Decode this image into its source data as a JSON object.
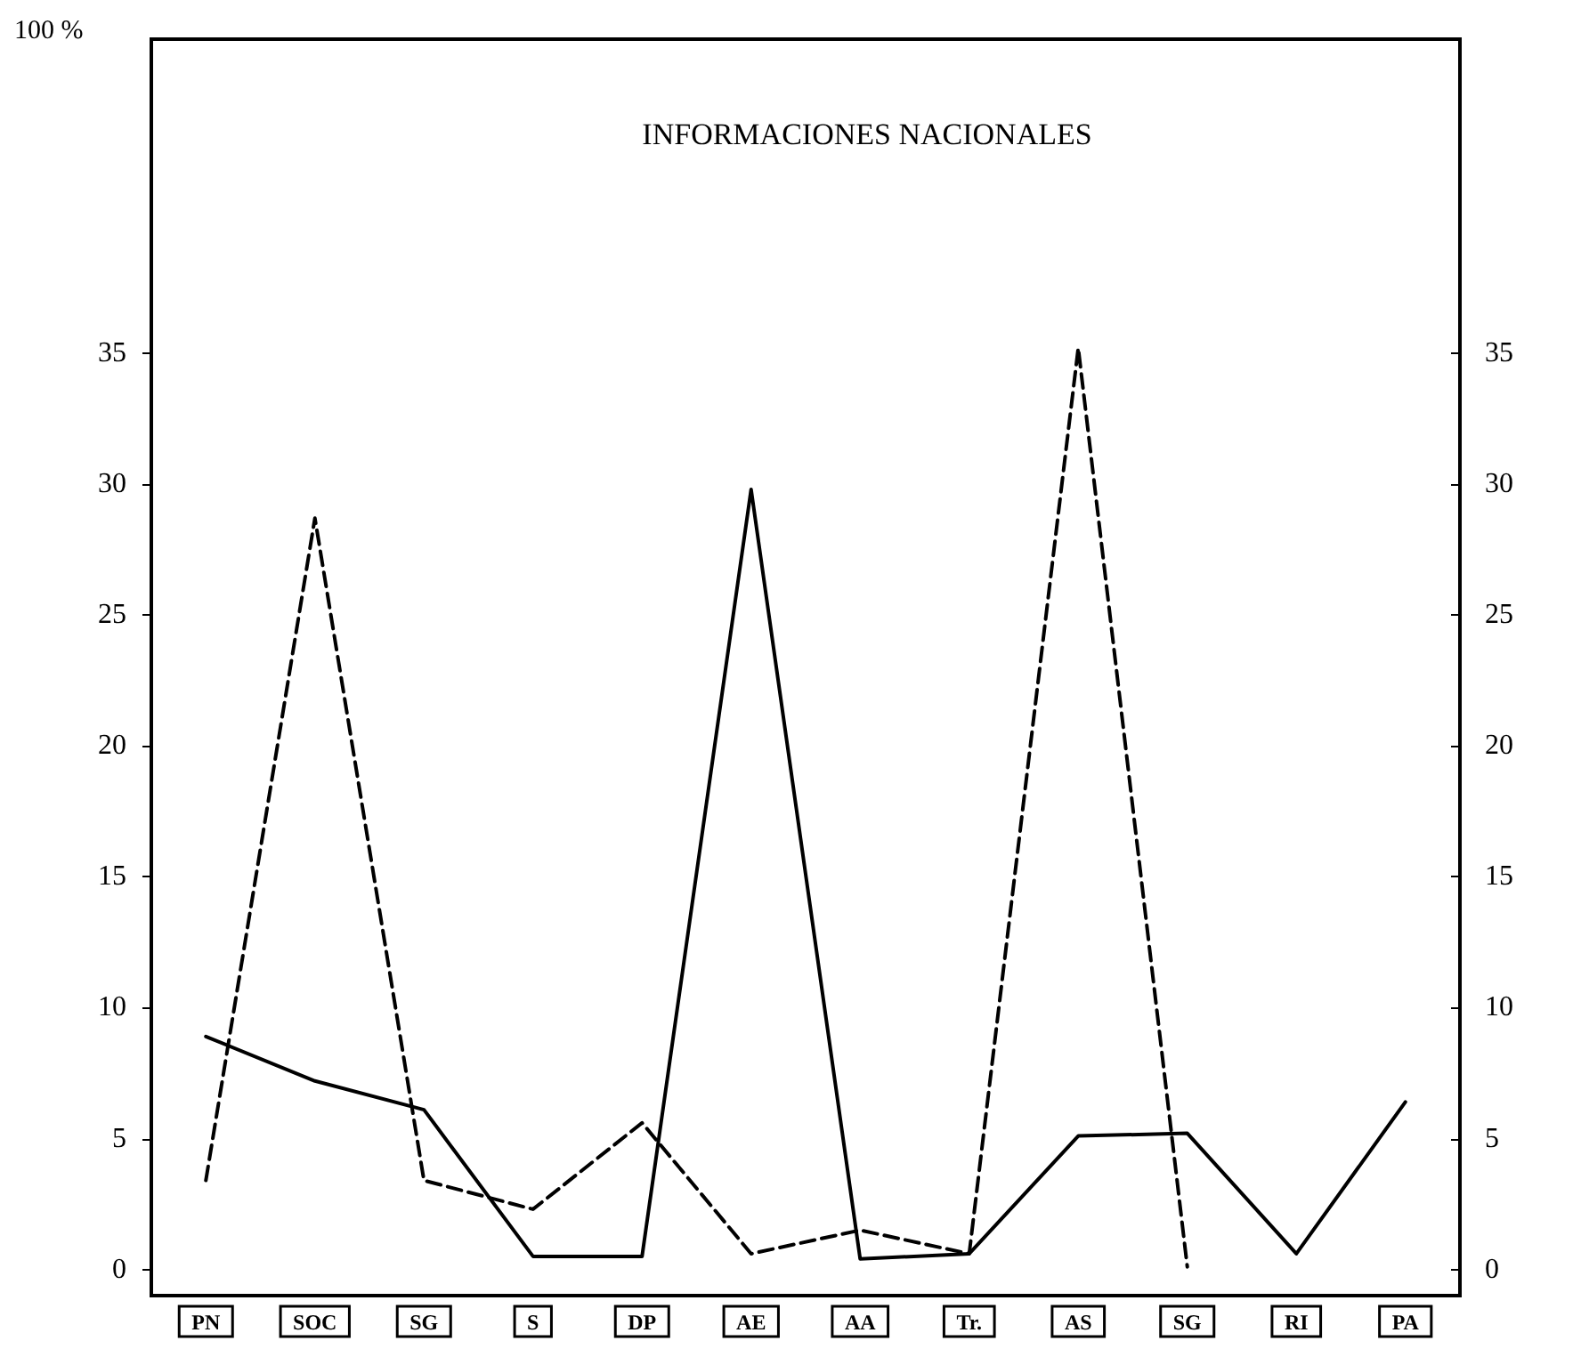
{
  "chart_data": {
    "type": "line",
    "title": "INFORMACIONES NACIONALES",
    "categories": [
      "PN",
      "SOC",
      "SG",
      "S",
      "DP",
      "AE",
      "AA",
      "Tr.",
      "AS",
      "SG",
      "RI",
      "PA"
    ],
    "series": [
      {
        "color": "#000000",
        "line_style": "solid",
        "values": [
          8.9,
          7.2,
          6.1,
          0.5,
          0.5,
          29.8,
          0.4,
          0.6,
          5.1,
          5.2,
          0.6,
          6.4
        ]
      },
      {
        "color": "#000000",
        "line_style": "dashed",
        "values": [
          3.4,
          28.7,
          3.4,
          2.3,
          5.6,
          0.6,
          1.5,
          0.6,
          35.2,
          0.1,
          null,
          null
        ]
      }
    ],
    "ylim": [
      -1,
      47
    ],
    "yticks": [
      0,
      5,
      10,
      15,
      20,
      25,
      30,
      35
    ],
    "y2lim": [
      -1,
      47
    ],
    "y2ticks": [
      0,
      5,
      10,
      15,
      20,
      25,
      30,
      35
    ],
    "annotations": [
      "100 %"
    ],
    "marker": "none"
  }
}
